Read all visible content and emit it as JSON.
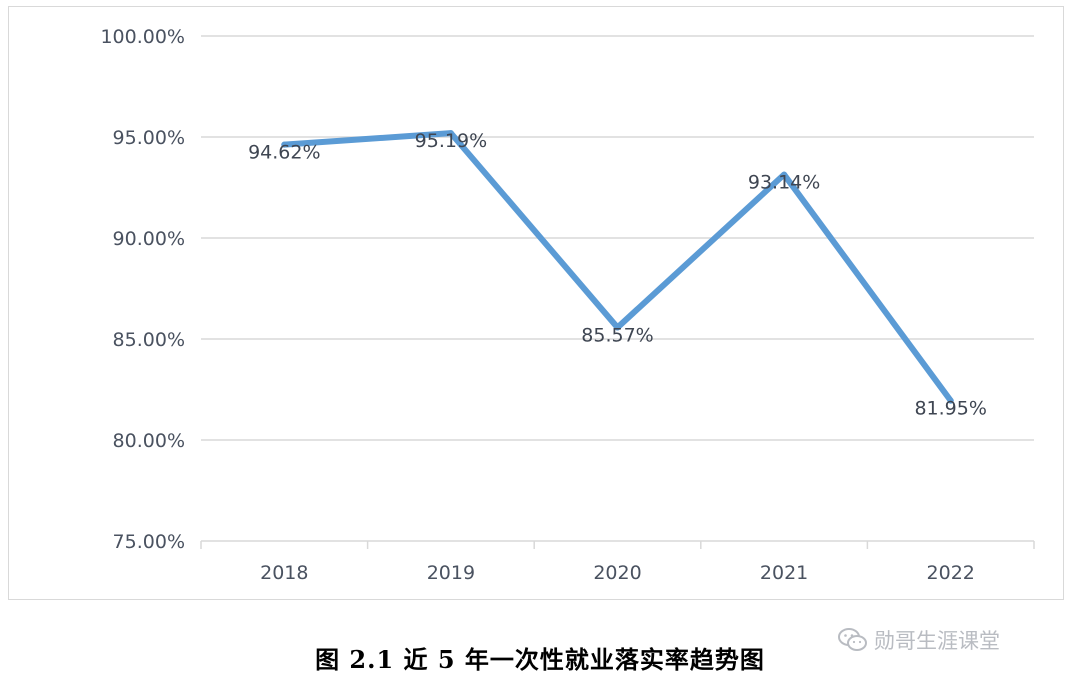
{
  "chart_data": {
    "type": "line",
    "categories": [
      "2018",
      "2019",
      "2020",
      "2021",
      "2022"
    ],
    "series": [
      {
        "values": [
          94.62,
          95.19,
          85.57,
          93.14,
          81.95
        ],
        "labels": [
          "94.62%",
          "95.19%",
          "85.57%",
          "93.14%",
          "81.95%"
        ],
        "color": "#5b9bd5"
      }
    ],
    "y_ticks": [
      "75.00%",
      "80.00%",
      "85.00%",
      "90.00%",
      "95.00%",
      "100.00%"
    ],
    "ylim": [
      75,
      100
    ],
    "grid": true,
    "legend": "none"
  },
  "caption": "图 2.1 近 5 年一次性就业落实率趋势图",
  "watermark": {
    "text": "勋哥生涯课堂",
    "icon": "wechat-icon"
  },
  "colors": {
    "line": "#5b9bd5",
    "grid": "#d9d9d9",
    "axis_text": "#4a5260"
  }
}
